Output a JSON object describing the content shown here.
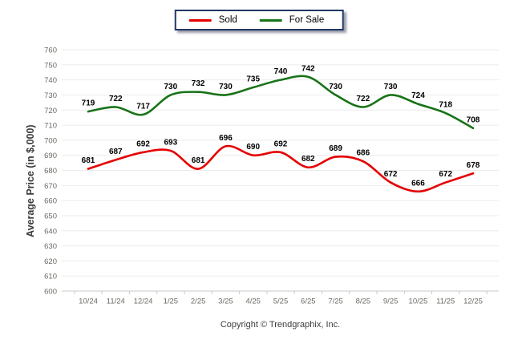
{
  "chart_data": {
    "type": "line",
    "title": "",
    "xlabel": "",
    "ylabel": "Average Price (in $,000)",
    "ylim": [
      600,
      760
    ],
    "ytick_step": 10,
    "yticks": [
      760,
      750,
      740,
      730,
      720,
      710,
      700,
      690,
      680,
      670,
      660,
      650,
      640,
      630,
      620,
      610,
      600
    ],
    "grid": true,
    "legend_position": "top-center",
    "categories": [
      "10/24",
      "11/24",
      "12/24",
      "1/25",
      "2/25",
      "3/25",
      "4/25",
      "5/25",
      "6/25",
      "7/25",
      "8/25",
      "9/25",
      "10/25",
      "11/25",
      "12/25"
    ],
    "series": [
      {
        "name": "Sold",
        "color": "#e50000",
        "values": [
          681,
          687,
          692,
          693,
          681,
          696,
          690,
          692,
          682,
          689,
          686,
          672,
          666,
          672,
          678
        ]
      },
      {
        "name": "For Sale",
        "color": "#177317",
        "values": [
          719,
          722,
          717,
          730,
          732,
          730,
          735,
          740,
          742,
          730,
          722,
          730,
          724,
          718,
          708
        ]
      }
    ]
  },
  "colors": {
    "legend_border": "#1f3864",
    "grid": "#ebebeb",
    "axis": "#c9c9c9",
    "tick_label": "#6b6b63",
    "data_label": "#000000"
  },
  "footer": {
    "copyright": "Copyright © Trendgraphix, Inc."
  }
}
